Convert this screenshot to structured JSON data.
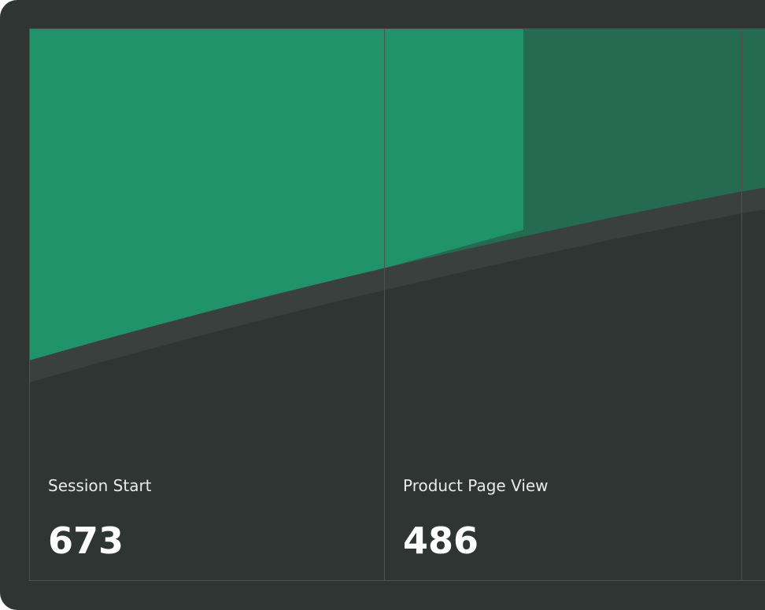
{
  "chart_data": {
    "type": "funnel",
    "categories": [
      "Session Start",
      "Product Page View"
    ],
    "values": [
      673,
      486
    ],
    "color": "#21936a"
  }
}
